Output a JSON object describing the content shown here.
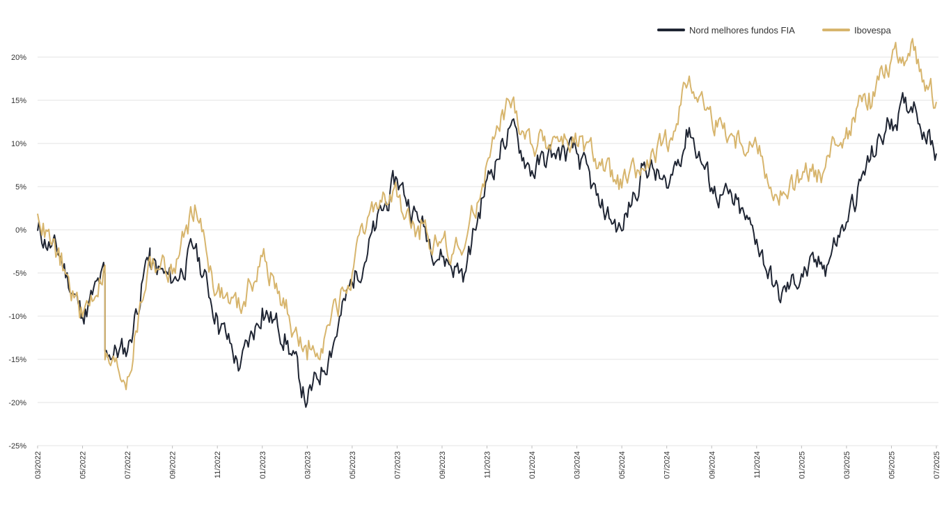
{
  "chart_data": {
    "type": "line",
    "title": "",
    "xlabel": "",
    "ylabel": "",
    "ylim": [
      -25,
      22
    ],
    "y_ticks": [
      "20%",
      "15%",
      "10%",
      "5%",
      "0%",
      "-5%",
      "-10%",
      "-15%",
      "-20%",
      "-25%"
    ],
    "x_ticks": [
      "03/2022",
      "05/2022",
      "07/2022",
      "09/2022",
      "11/2022",
      "01/2023",
      "03/2023",
      "05/2023",
      "07/2023",
      "09/2023",
      "11/2023",
      "01/2024",
      "03/2024",
      "05/2024",
      "07/2024",
      "09/2024",
      "11/2024",
      "01/2025",
      "03/2025",
      "05/2025",
      "07/2025"
    ],
    "grid": true,
    "legend_position": "top-right",
    "series": [
      {
        "name": "Nord melhores fundos FIA",
        "color": "#1f2533",
        "points": [
          [
            "03/2022",
            0
          ],
          [
            "04/2022",
            -3
          ],
          [
            "05/2022",
            -10
          ],
          [
            "05/2022",
            -5
          ],
          [
            "06/2022",
            -14
          ],
          [
            "07/2022",
            -14
          ],
          [
            "07/2022",
            -2
          ],
          [
            "08/2022",
            -4
          ],
          [
            "09/2022",
            -6
          ],
          [
            "10/2022",
            -2
          ],
          [
            "11/2022",
            -10
          ],
          [
            "12/2022",
            -16
          ],
          [
            "01/2023",
            -9
          ],
          [
            "02/2023",
            -12
          ],
          [
            "03/2023",
            -20
          ],
          [
            "04/2023",
            -14
          ],
          [
            "05/2023",
            -6
          ],
          [
            "06/2023",
            0
          ],
          [
            "07/2023",
            6
          ],
          [
            "08/2023",
            1
          ],
          [
            "09/2023",
            -3
          ],
          [
            "10/2023",
            -5
          ],
          [
            "11/2023",
            6
          ],
          [
            "12/2023",
            12
          ],
          [
            "01/2024",
            7
          ],
          [
            "02/2024",
            9
          ],
          [
            "03/2024",
            9
          ],
          [
            "04/2024",
            3
          ],
          [
            "05/2024",
            0
          ],
          [
            "06/2024",
            8
          ],
          [
            "07/2024",
            5
          ],
          [
            "08/2024",
            12
          ],
          [
            "09/2024",
            5
          ],
          [
            "10/2024",
            3
          ],
          [
            "11/2024",
            -1
          ],
          [
            "12/2024",
            -8
          ],
          [
            "01/2025",
            -5
          ],
          [
            "02/2025",
            -4
          ],
          [
            "03/2025",
            1
          ],
          [
            "04/2025",
            8
          ],
          [
            "05/2025",
            13
          ],
          [
            "06/2025",
            15
          ],
          [
            "07/2025",
            9
          ]
        ]
      },
      {
        "name": "Ibovespa",
        "color": "#d7b56d",
        "points": [
          [
            "03/2022",
            2
          ],
          [
            "04/2022",
            -4
          ],
          [
            "05/2022",
            -10
          ],
          [
            "05/2022",
            -4
          ],
          [
            "06/2022",
            -15
          ],
          [
            "07/2022",
            -17
          ],
          [
            "07/2022",
            -3
          ],
          [
            "08/2022",
            -3
          ],
          [
            "09/2022",
            -5
          ],
          [
            "10/2022",
            3
          ],
          [
            "11/2022",
            -7
          ],
          [
            "12/2022",
            -9
          ],
          [
            "01/2023",
            -3
          ],
          [
            "02/2023",
            -9
          ],
          [
            "03/2023",
            -15
          ],
          [
            "04/2023",
            -11
          ],
          [
            "05/2023",
            -5
          ],
          [
            "06/2023",
            3
          ],
          [
            "07/2023",
            4
          ],
          [
            "08/2023",
            -1
          ],
          [
            "09/2023",
            -1
          ],
          [
            "10/2023",
            -2
          ],
          [
            "11/2023",
            8
          ],
          [
            "12/2023",
            15
          ],
          [
            "01/2024",
            10
          ],
          [
            "02/2024",
            11
          ],
          [
            "03/2024",
            10
          ],
          [
            "04/2024",
            8
          ],
          [
            "05/2024",
            5
          ],
          [
            "06/2024",
            7
          ],
          [
            "07/2024",
            10
          ],
          [
            "08/2024",
            18
          ],
          [
            "09/2024",
            13
          ],
          [
            "10/2024",
            11
          ],
          [
            "11/2024",
            10
          ],
          [
            "12/2024",
            3
          ],
          [
            "01/2025",
            6
          ],
          [
            "02/2025",
            7
          ],
          [
            "03/2025",
            12
          ],
          [
            "04/2025",
            16
          ],
          [
            "05/2025",
            20
          ],
          [
            "06/2025",
            21
          ],
          [
            "07/2025",
            15
          ]
        ]
      }
    ]
  }
}
